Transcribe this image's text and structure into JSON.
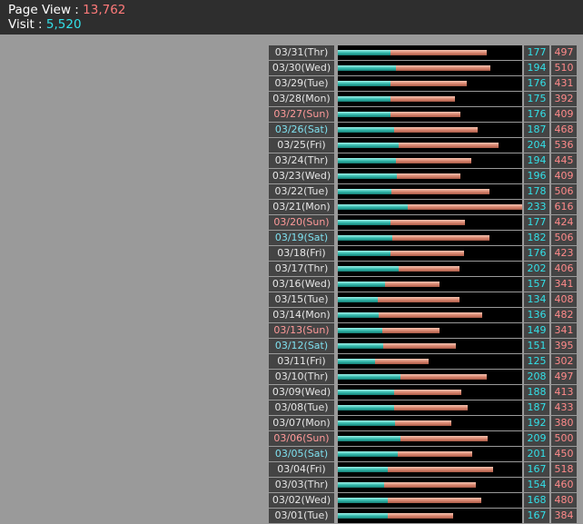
{
  "header": {
    "page_view_label": "Page View : ",
    "page_view_value": "13,762",
    "visit_label": "Visit : ",
    "visit_value": "5,520"
  },
  "colors": {
    "page_view": "#ff7a7a",
    "visit": "#33e0e8",
    "sunday": "#ff9a9a",
    "saturday": "#7fe0ef"
  },
  "chart_data": {
    "type": "bar",
    "series": [
      {
        "name": "Page View"
      },
      {
        "name": "Visit"
      }
    ],
    "rows": [
      {
        "date": "03/31(Thr)",
        "day": "",
        "visit": 177,
        "page_view": 497
      },
      {
        "date": "03/30(Wed)",
        "day": "",
        "visit": 194,
        "page_view": 510
      },
      {
        "date": "03/29(Tue)",
        "day": "",
        "visit": 176,
        "page_view": 431
      },
      {
        "date": "03/28(Mon)",
        "day": "",
        "visit": 175,
        "page_view": 392
      },
      {
        "date": "03/27(Sun)",
        "day": "sun",
        "visit": 176,
        "page_view": 409
      },
      {
        "date": "03/26(Sat)",
        "day": "sat",
        "visit": 187,
        "page_view": 468
      },
      {
        "date": "03/25(Fri)",
        "day": "",
        "visit": 204,
        "page_view": 536
      },
      {
        "date": "03/24(Thr)",
        "day": "",
        "visit": 194,
        "page_view": 445
      },
      {
        "date": "03/23(Wed)",
        "day": "",
        "visit": 196,
        "page_view": 409
      },
      {
        "date": "03/22(Tue)",
        "day": "",
        "visit": 178,
        "page_view": 506
      },
      {
        "date": "03/21(Mon)",
        "day": "",
        "visit": 233,
        "page_view": 616
      },
      {
        "date": "03/20(Sun)",
        "day": "sun",
        "visit": 177,
        "page_view": 424
      },
      {
        "date": "03/19(Sat)",
        "day": "sat",
        "visit": 182,
        "page_view": 506
      },
      {
        "date": "03/18(Fri)",
        "day": "",
        "visit": 176,
        "page_view": 423
      },
      {
        "date": "03/17(Thr)",
        "day": "",
        "visit": 202,
        "page_view": 406
      },
      {
        "date": "03/16(Wed)",
        "day": "",
        "visit": 157,
        "page_view": 341
      },
      {
        "date": "03/15(Tue)",
        "day": "",
        "visit": 134,
        "page_view": 408
      },
      {
        "date": "03/14(Mon)",
        "day": "",
        "visit": 136,
        "page_view": 482
      },
      {
        "date": "03/13(Sun)",
        "day": "sun",
        "visit": 149,
        "page_view": 341
      },
      {
        "date": "03/12(Sat)",
        "day": "sat",
        "visit": 151,
        "page_view": 395
      },
      {
        "date": "03/11(Fri)",
        "day": "",
        "visit": 125,
        "page_view": 302
      },
      {
        "date": "03/10(Thr)",
        "day": "",
        "visit": 208,
        "page_view": 497
      },
      {
        "date": "03/09(Wed)",
        "day": "",
        "visit": 188,
        "page_view": 413
      },
      {
        "date": "03/08(Tue)",
        "day": "",
        "visit": 187,
        "page_view": 433
      },
      {
        "date": "03/07(Mon)",
        "day": "",
        "visit": 192,
        "page_view": 380
      },
      {
        "date": "03/06(Sun)",
        "day": "sun",
        "visit": 209,
        "page_view": 500
      },
      {
        "date": "03/05(Sat)",
        "day": "sat",
        "visit": 201,
        "page_view": 450
      },
      {
        "date": "03/04(Fri)",
        "day": "",
        "visit": 167,
        "page_view": 518
      },
      {
        "date": "03/03(Thr)",
        "day": "",
        "visit": 154,
        "page_view": 460
      },
      {
        "date": "03/02(Wed)",
        "day": "",
        "visit": 168,
        "page_view": 480
      },
      {
        "date": "03/01(Tue)",
        "day": "",
        "visit": 167,
        "page_view": 384
      }
    ],
    "xlim": [
      0,
      616
    ]
  }
}
